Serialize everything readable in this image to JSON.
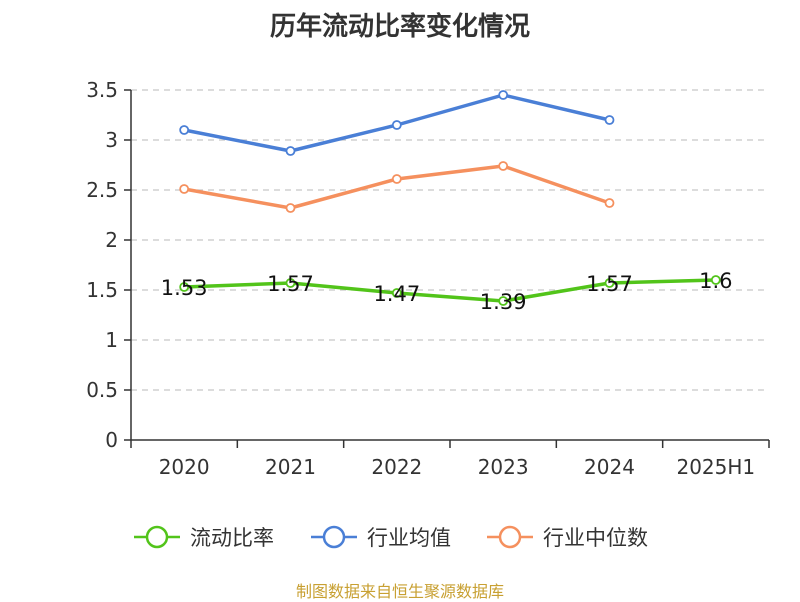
{
  "chart_data": {
    "type": "line",
    "title": "历年流动比率变化情况",
    "categories": [
      "2020",
      "2021",
      "2022",
      "2023",
      "2024",
      "2025H1"
    ],
    "ylim": [
      0,
      3.5
    ],
    "yticks": [
      "0",
      "0.5",
      "1",
      "1.5",
      "2",
      "2.5",
      "3",
      "3.5"
    ],
    "grid": true,
    "legend_position": "bottom",
    "series": [
      {
        "name": "流动比率",
        "color": "#52c41a",
        "values": [
          1.53,
          1.57,
          1.47,
          1.39,
          1.57,
          1.6
        ],
        "labels": [
          "1.53",
          "1.57",
          "1.47",
          "1.39",
          "1.57",
          "1.6"
        ]
      },
      {
        "name": "行业均值",
        "color": "#4a7fd6",
        "values": [
          3.1,
          2.89,
          3.15,
          3.45,
          3.2,
          null
        ]
      },
      {
        "name": "行业中位数",
        "color": "#f5905e",
        "values": [
          2.51,
          2.32,
          2.61,
          2.74,
          2.37,
          null
        ]
      }
    ]
  },
  "source": "制图数据来自恒生聚源数据库"
}
